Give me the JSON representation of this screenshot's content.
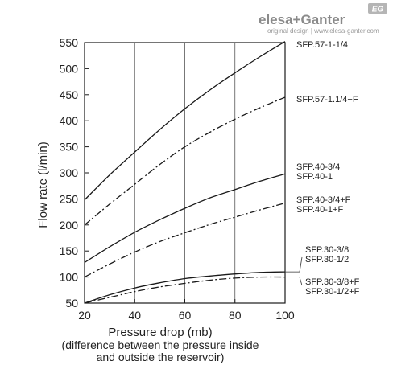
{
  "brand": {
    "name_left": "elesa",
    "plus": "+",
    "name_right": "Ganter",
    "badge": "EG",
    "website": "www.elesa-ganter.com",
    "website_prefix": "original design",
    "colors": {
      "brand": "#8a8a8a",
      "badge_bg": "#b5b5b5"
    }
  },
  "chart_data": {
    "type": "line",
    "title": "",
    "xlabel": "Pressure drop (mb)",
    "xlabel_note": [
      "(difference between the pressure inside",
      "and outside the reservoir)"
    ],
    "ylabel": "Flow rate (l/min)",
    "xlim": [
      20,
      100
    ],
    "ylim": [
      50,
      550
    ],
    "x_ticks": [
      20,
      40,
      60,
      80,
      100
    ],
    "y_ticks": [
      50,
      100,
      150,
      200,
      250,
      300,
      350,
      400,
      450,
      500,
      550
    ],
    "grid": "vertical only",
    "x": [
      20,
      30,
      40,
      50,
      60,
      70,
      80,
      90,
      100
    ],
    "series": [
      {
        "name": "SFP.57-1-1/4",
        "style": "solid",
        "values": [
          248,
          296,
          340,
          383,
          423,
          459,
          492,
          523,
          552
        ]
      },
      {
        "name": "SFP.57-1.1/4+F",
        "style": "dashdot",
        "values": [
          200,
          240,
          278,
          316,
          350,
          378,
          403,
          425,
          445
        ]
      },
      {
        "name": "SFP.40-3/4 SFP.40-1",
        "style": "solid",
        "values": [
          128,
          158,
          186,
          210,
          232,
          252,
          268,
          284,
          298
        ]
      },
      {
        "name": "SFP.40-3/4+F SFP.40-1+F",
        "style": "dashdot",
        "values": [
          100,
          125,
          148,
          168,
          185,
          201,
          215,
          229,
          242
        ]
      },
      {
        "name": "SFP.30-3/8 SFP.30-1/2",
        "style": "solid",
        "values": [
          50,
          66,
          79,
          89,
          97,
          102,
          106,
          109,
          110
        ]
      },
      {
        "name": "SFP.30-3/8+F SFP.30-1/2+F",
        "style": "dashdot",
        "values": [
          50,
          61,
          72,
          81,
          88,
          94,
          98,
          100,
          100
        ]
      }
    ],
    "labels": [
      {
        "lines": [
          "SFP.57-1-1/4"
        ]
      },
      {
        "lines": [
          "SFP.57-1.1/4+F"
        ]
      },
      {
        "lines": [
          "SFP.40-3/4",
          "SFP.40-1"
        ]
      },
      {
        "lines": [
          "SFP.40-3/4+F",
          "SFP.40-1+F"
        ]
      },
      {
        "lines": [
          "SFP.30-3/8",
          "SFP.30-1/2"
        ]
      },
      {
        "lines": [
          "SFP.30-3/8+F",
          "SFP.30-1/2+F"
        ]
      }
    ]
  }
}
